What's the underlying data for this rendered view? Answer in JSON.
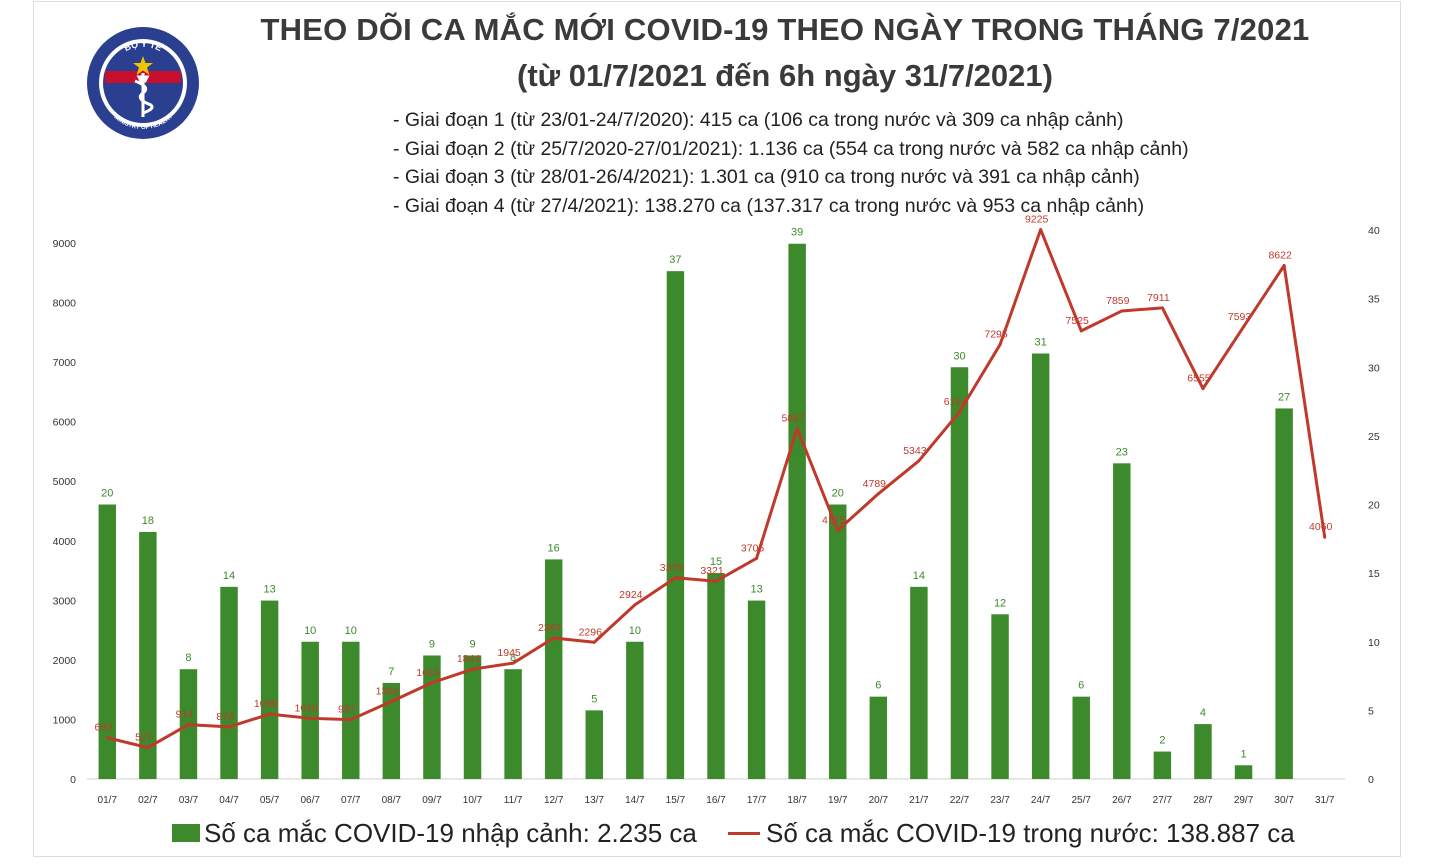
{
  "header": {
    "title": "THEO DÕI CA MẮC MỚI COVID-19 THEO NGÀY TRONG THÁNG 7/2021",
    "subtitle": "(từ 01/7/2021 đến 6h ngày 31/7/2021)",
    "phases": [
      "- Giai đoạn 1 (từ 23/01-24/7/2020): 415 ca (106 ca trong nước và 309 ca nhập cảnh)",
      "- Giai đoạn 2 (từ 25/7/2020-27/01/2021): 1.136 ca (554 ca trong nước và 582 ca nhập cảnh)",
      "- Giai đoạn 3 (từ 28/01-26/4/2021): 1.301 ca (910 ca trong nước và 391 ca nhập cảnh)",
      "- Giai đoạn 4 (từ 27/4/2021): 138.270 ca (137.317 ca trong nước và 953 ca nhập cảnh)"
    ]
  },
  "logo": {
    "text_top": "BỘ Y TẾ",
    "text_bottom": "MINISTRY OF HEALTH",
    "icon": "caduceus-icon"
  },
  "colors": {
    "bar": "#3d8a2c",
    "bar_label": "#3d8a2c",
    "line": "#c0392b",
    "line_label": "#c0392b",
    "logo_blue": "#2a3f8f",
    "logo_red": "#c8102e"
  },
  "legend": {
    "bar_label": "Số ca mắc COVID-19 nhập cảnh: 2.235 ca",
    "line_label": "Số ca mắc COVID-19 trong nước: 138.887 ca"
  },
  "chart_data": {
    "type": "bar+line",
    "categories": [
      "01/7",
      "02/7",
      "03/7",
      "04/7",
      "05/7",
      "06/7",
      "07/7",
      "08/7",
      "09/7",
      "10/7",
      "11/7",
      "12/7",
      "13/7",
      "14/7",
      "15/7",
      "16/7",
      "17/7",
      "18/7",
      "19/7",
      "20/7",
      "21/7",
      "22/7",
      "23/7",
      "24/7",
      "25/7",
      "26/7",
      "27/7",
      "28/7",
      "29/7",
      "30/7",
      "31/7"
    ],
    "series": [
      {
        "name": "Số ca mắc COVID-19 nhập cảnh: 2.235 ca",
        "type": "bar",
        "axis": "right",
        "values": [
          20,
          18,
          8,
          14,
          13,
          10,
          10,
          7,
          9,
          9,
          8,
          16,
          5,
          10,
          37,
          15,
          13,
          39,
          20,
          6,
          14,
          30,
          12,
          31,
          6,
          23,
          2,
          4,
          1,
          27,
          null
        ]
      },
      {
        "name": "Số ca mắc COVID-19 trong nước: 138.887 ca",
        "type": "line",
        "axis": "left",
        "values": [
          693,
          527,
          914,
          876,
          1089,
          1019,
          997,
          1302,
          1616,
          1844,
          1945,
          2367,
          2296,
          2924,
          3379,
          3321,
          3705,
          5887,
          4175,
          4789,
          5343,
          6164,
          7295,
          9225,
          7525,
          7859,
          7911,
          6555,
          7593,
          8622,
          4060
        ],
        "labels": [
          "693",
          "527",
          "914",
          "876",
          "1089",
          "1019",
          "997",
          "1302",
          "1616",
          "1844",
          "1945",
          "2367",
          "2296",
          "2924",
          "3379",
          "3321",
          "3705",
          "5887",
          "4175",
          "4789",
          "5343",
          "6164",
          "7295",
          "9225",
          "7525",
          "7859",
          "7911",
          "6555",
          "7593",
          "8622",
          "4060"
        ]
      }
    ],
    "y_left": {
      "ticks": [
        0,
        1000,
        2000,
        3000,
        4000,
        5000,
        6000,
        7000,
        8000,
        9000
      ],
      "lim": [
        0,
        9000
      ]
    },
    "y_right": {
      "ticks": [
        0,
        5,
        10,
        15,
        20,
        25,
        30,
        35,
        40
      ],
      "lim": [
        0,
        40
      ]
    },
    "grid": false,
    "legend": "bottom"
  }
}
